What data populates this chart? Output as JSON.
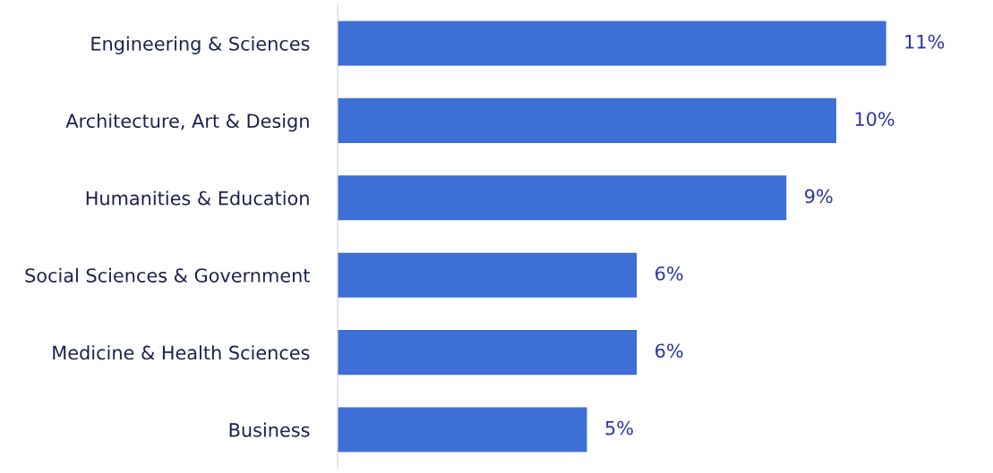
{
  "chart_data": {
    "type": "bar",
    "orientation": "horizontal",
    "categories": [
      "Engineering & Sciences",
      "Architecture, Art & Design",
      "Humanities & Education",
      "Social Sciences & Government",
      "Medicine & Health Sciences",
      "Business"
    ],
    "values": [
      11,
      10,
      9,
      6,
      6,
      5
    ],
    "value_labels": [
      "11%",
      "10%",
      "9%",
      "6%",
      "6%",
      "5%"
    ],
    "color": "#3d6fd6",
    "tick_labels": "y"
  }
}
